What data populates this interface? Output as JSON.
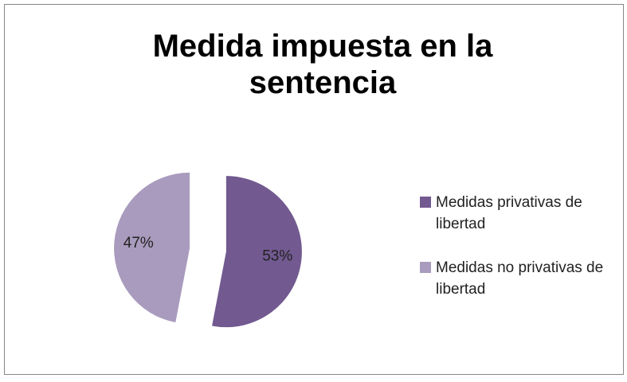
{
  "chart_data": {
    "type": "pie",
    "title": "Medida impuesta en la sentencia",
    "categories": [
      "Medidas privativas de libertad",
      "Medidas no privativas de libertad"
    ],
    "values": [
      53,
      47
    ],
    "value_labels": [
      "53%",
      "47%"
    ],
    "colors": [
      "#725990",
      "#a99bbd"
    ],
    "legend": "right"
  }
}
